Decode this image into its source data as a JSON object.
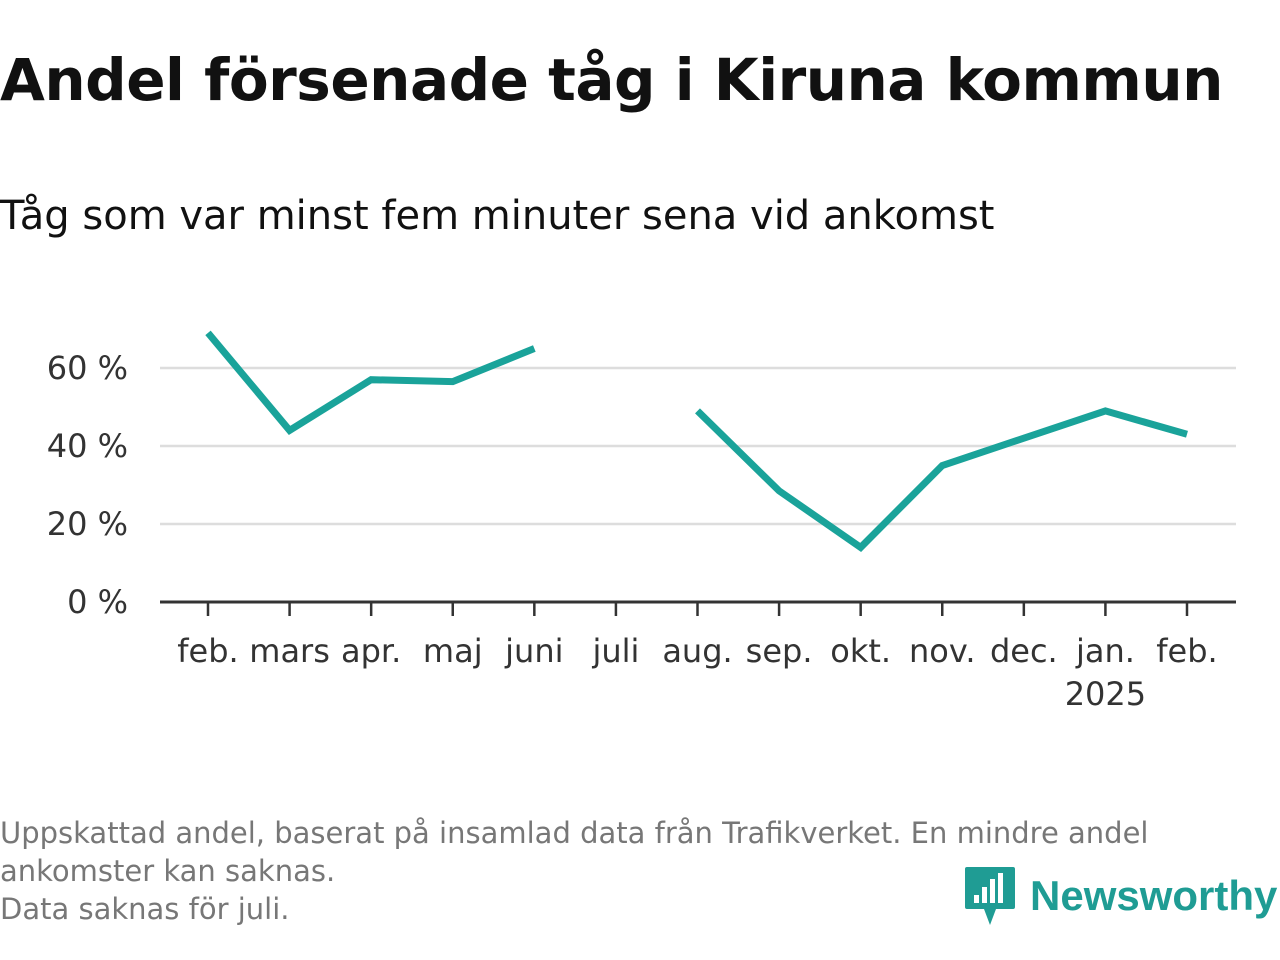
{
  "header": {
    "title": "Andel försenade tåg i Kiruna kommun",
    "subtitle": "Tåg som var minst fem minuter sena vid ankomst"
  },
  "chart_data": {
    "type": "line",
    "title": "Andel försenade tåg i Kiruna kommun",
    "subtitle": "Tåg som var minst fem minuter sena vid ankomst",
    "xlabel": "",
    "ylabel": "",
    "categories": [
      "feb.",
      "mars",
      "apr.",
      "maj",
      "juni",
      "juli",
      "aug.",
      "sep.",
      "okt.",
      "nov.",
      "dec.",
      "jan.",
      "feb."
    ],
    "year_labels": [
      "",
      "",
      "",
      "",
      "",
      "",
      "",
      "",
      "",
      "",
      "",
      "2025",
      ""
    ],
    "series": [
      {
        "values": [
          69,
          44,
          57,
          56.5,
          65,
          null,
          49,
          28.5,
          14,
          35,
          42,
          49,
          43
        ]
      }
    ],
    "ylim": [
      0,
      75
    ],
    "yticks": [
      0,
      20,
      40,
      60
    ],
    "ytick_labels": [
      "0 %",
      "20 %",
      "40 %",
      "60 %"
    ],
    "grid": "horizontal",
    "legend": "none",
    "line_color": "#1aa39a",
    "grid_color": "#dddddd",
    "axis_color": "#333333"
  },
  "footnotes": [
    "Uppskattad andel, baserat på insamlad data från Trafikverket. En mindre andel",
    "ankomster kan saknas.",
    "Data saknas för juli."
  ],
  "brand": {
    "name": "Newsworthy",
    "icon": "newsworthy-logo-icon",
    "color": "#1f9c94"
  }
}
